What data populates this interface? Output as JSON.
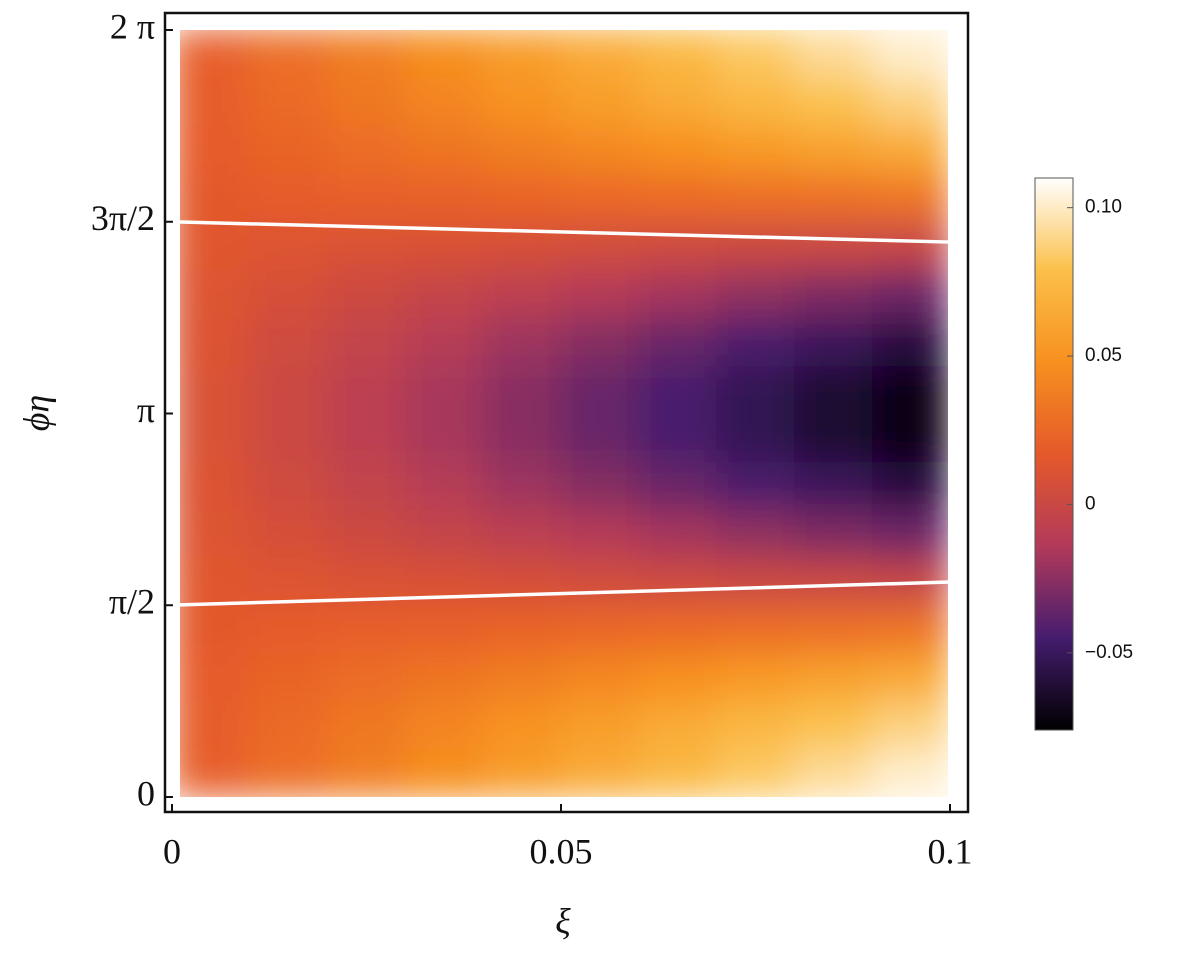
{
  "chart_data": {
    "type": "heatmap",
    "x_label": "ξ",
    "y_label": "ϕη",
    "x": [
      0.005,
      0.015,
      0.025,
      0.035,
      0.045,
      0.055,
      0.065,
      0.075,
      0.085,
      0.095
    ],
    "y": [
      0.1963,
      0.589,
      0.9817,
      1.3744,
      1.7671,
      2.1598,
      2.5525,
      2.9452,
      3.3379,
      3.7306,
      4.1233,
      4.516,
      4.9087,
      5.3014,
      5.6941,
      6.0868
    ],
    "z": [
      [
        0.02,
        0.029,
        0.038,
        0.047,
        0.056,
        0.065,
        0.074,
        0.083,
        0.092,
        0.101
      ],
      [
        0.019,
        0.027,
        0.034,
        0.042,
        0.05,
        0.057,
        0.065,
        0.073,
        0.08,
        0.088
      ],
      [
        0.018,
        0.023,
        0.028,
        0.033,
        0.038,
        0.043,
        0.048,
        0.054,
        0.059,
        0.064
      ],
      [
        0.016,
        0.018,
        0.02,
        0.021,
        0.023,
        0.025,
        0.027,
        0.029,
        0.03,
        0.032
      ],
      [
        0.014,
        0.012,
        0.01,
        0.009,
        0.007,
        0.005,
        0.003,
        0.001,
        0.0,
        -0.002
      ],
      [
        0.012,
        0.007,
        0.002,
        -0.003,
        -0.008,
        -0.013,
        -0.018,
        -0.024,
        -0.029,
        -0.034
      ],
      [
        0.011,
        0.003,
        -0.004,
        -0.012,
        -0.02,
        -0.027,
        -0.035,
        -0.043,
        -0.05,
        -0.058
      ],
      [
        0.01,
        0.001,
        -0.008,
        -0.017,
        -0.026,
        -0.035,
        -0.044,
        -0.053,
        -0.062,
        -0.071
      ],
      [
        0.01,
        0.001,
        -0.008,
        -0.017,
        -0.026,
        -0.035,
        -0.044,
        -0.053,
        -0.062,
        -0.071
      ],
      [
        0.011,
        0.003,
        -0.004,
        -0.012,
        -0.02,
        -0.027,
        -0.035,
        -0.043,
        -0.05,
        -0.058
      ],
      [
        0.012,
        0.007,
        0.002,
        -0.003,
        -0.008,
        -0.013,
        -0.018,
        -0.024,
        -0.029,
        -0.034
      ],
      [
        0.014,
        0.012,
        0.01,
        0.009,
        0.007,
        0.005,
        0.003,
        0.001,
        0.0,
        -0.002
      ],
      [
        0.016,
        0.018,
        0.02,
        0.021,
        0.023,
        0.025,
        0.027,
        0.029,
        0.03,
        0.032
      ],
      [
        0.018,
        0.023,
        0.028,
        0.033,
        0.038,
        0.043,
        0.048,
        0.054,
        0.059,
        0.064
      ],
      [
        0.019,
        0.027,
        0.034,
        0.042,
        0.05,
        0.057,
        0.065,
        0.073,
        0.08,
        0.088
      ],
      [
        0.02,
        0.029,
        0.038,
        0.047,
        0.056,
        0.065,
        0.074,
        0.083,
        0.092,
        0.101
      ]
    ],
    "contours": [
      {
        "color": "#ffffff",
        "x": [
          0,
          0.1
        ],
        "y": [
          4.712,
          4.546
        ]
      },
      {
        "color": "#ffffff",
        "x": [
          0,
          0.1
        ],
        "y": [
          1.572,
          1.761
        ]
      }
    ],
    "xlim": [
      0,
      0.1
    ],
    "xticks": [
      0,
      0.05,
      0.1
    ],
    "ylim": [
      0,
      6.2832
    ],
    "yticks": [
      0,
      {
        "value": 1.5708,
        "label": "π/2"
      },
      {
        "value": 3.1416,
        "label": "π"
      },
      {
        "value": 4.7124,
        "label": "3π/2"
      },
      {
        "value": 6.2832,
        "label": "2 π"
      }
    ],
    "colormap": [
      "#000000",
      "#451c6e",
      "#b23a5a",
      "#e5592a",
      "#f7901f",
      "#fbc04a",
      "#ffffff"
    ],
    "clim": [
      -0.076,
      0.11
    ],
    "cticks": [
      {
        "value": -0.05,
        "label": "−0.05"
      },
      0,
      0.05,
      {
        "value": 0.1,
        "label": "0.10"
      }
    ]
  }
}
